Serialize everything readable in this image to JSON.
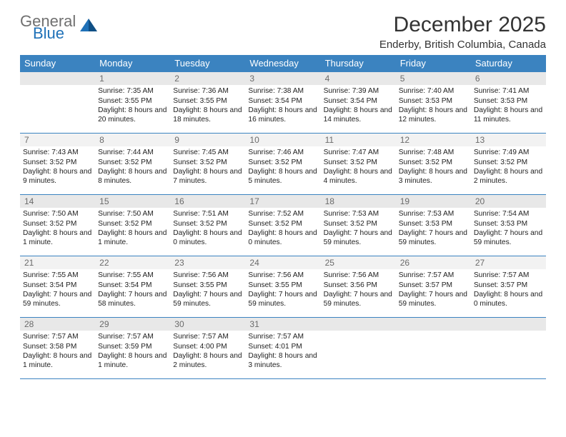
{
  "colors": {
    "accent": "#3b83c0",
    "background": "#ffffff",
    "row_divider": "#3b83c0",
    "daynum_bg": "#e8e8e8",
    "daynum_bg_zebra": "#f2f2f2",
    "daynum_color": "#6b6b6b",
    "text": "#222222",
    "header_text": "#ffffff",
    "logo_gray": "#707070",
    "logo_blue": "#1f71b8"
  },
  "logo": {
    "line1": "General",
    "line2": "Blue"
  },
  "title": "December 2025",
  "subtitle": "Enderby, British Columbia, Canada",
  "weekdays": [
    "Sunday",
    "Monday",
    "Tuesday",
    "Wednesday",
    "Thursday",
    "Friday",
    "Saturday"
  ],
  "weeks": [
    [
      null,
      {
        "n": "1",
        "sr": "Sunrise: 7:35 AM",
        "ss": "Sunset: 3:55 PM",
        "dl": "Daylight: 8 hours and 20 minutes."
      },
      {
        "n": "2",
        "sr": "Sunrise: 7:36 AM",
        "ss": "Sunset: 3:55 PM",
        "dl": "Daylight: 8 hours and 18 minutes."
      },
      {
        "n": "3",
        "sr": "Sunrise: 7:38 AM",
        "ss": "Sunset: 3:54 PM",
        "dl": "Daylight: 8 hours and 16 minutes."
      },
      {
        "n": "4",
        "sr": "Sunrise: 7:39 AM",
        "ss": "Sunset: 3:54 PM",
        "dl": "Daylight: 8 hours and 14 minutes."
      },
      {
        "n": "5",
        "sr": "Sunrise: 7:40 AM",
        "ss": "Sunset: 3:53 PM",
        "dl": "Daylight: 8 hours and 12 minutes."
      },
      {
        "n": "6",
        "sr": "Sunrise: 7:41 AM",
        "ss": "Sunset: 3:53 PM",
        "dl": "Daylight: 8 hours and 11 minutes."
      }
    ],
    [
      {
        "n": "7",
        "sr": "Sunrise: 7:43 AM",
        "ss": "Sunset: 3:52 PM",
        "dl": "Daylight: 8 hours and 9 minutes."
      },
      {
        "n": "8",
        "sr": "Sunrise: 7:44 AM",
        "ss": "Sunset: 3:52 PM",
        "dl": "Daylight: 8 hours and 8 minutes."
      },
      {
        "n": "9",
        "sr": "Sunrise: 7:45 AM",
        "ss": "Sunset: 3:52 PM",
        "dl": "Daylight: 8 hours and 7 minutes."
      },
      {
        "n": "10",
        "sr": "Sunrise: 7:46 AM",
        "ss": "Sunset: 3:52 PM",
        "dl": "Daylight: 8 hours and 5 minutes."
      },
      {
        "n": "11",
        "sr": "Sunrise: 7:47 AM",
        "ss": "Sunset: 3:52 PM",
        "dl": "Daylight: 8 hours and 4 minutes."
      },
      {
        "n": "12",
        "sr": "Sunrise: 7:48 AM",
        "ss": "Sunset: 3:52 PM",
        "dl": "Daylight: 8 hours and 3 minutes."
      },
      {
        "n": "13",
        "sr": "Sunrise: 7:49 AM",
        "ss": "Sunset: 3:52 PM",
        "dl": "Daylight: 8 hours and 2 minutes."
      }
    ],
    [
      {
        "n": "14",
        "sr": "Sunrise: 7:50 AM",
        "ss": "Sunset: 3:52 PM",
        "dl": "Daylight: 8 hours and 1 minute."
      },
      {
        "n": "15",
        "sr": "Sunrise: 7:50 AM",
        "ss": "Sunset: 3:52 PM",
        "dl": "Daylight: 8 hours and 1 minute."
      },
      {
        "n": "16",
        "sr": "Sunrise: 7:51 AM",
        "ss": "Sunset: 3:52 PM",
        "dl": "Daylight: 8 hours and 0 minutes."
      },
      {
        "n": "17",
        "sr": "Sunrise: 7:52 AM",
        "ss": "Sunset: 3:52 PM",
        "dl": "Daylight: 8 hours and 0 minutes."
      },
      {
        "n": "18",
        "sr": "Sunrise: 7:53 AM",
        "ss": "Sunset: 3:52 PM",
        "dl": "Daylight: 7 hours and 59 minutes."
      },
      {
        "n": "19",
        "sr": "Sunrise: 7:53 AM",
        "ss": "Sunset: 3:53 PM",
        "dl": "Daylight: 7 hours and 59 minutes."
      },
      {
        "n": "20",
        "sr": "Sunrise: 7:54 AM",
        "ss": "Sunset: 3:53 PM",
        "dl": "Daylight: 7 hours and 59 minutes."
      }
    ],
    [
      {
        "n": "21",
        "sr": "Sunrise: 7:55 AM",
        "ss": "Sunset: 3:54 PM",
        "dl": "Daylight: 7 hours and 59 minutes."
      },
      {
        "n": "22",
        "sr": "Sunrise: 7:55 AM",
        "ss": "Sunset: 3:54 PM",
        "dl": "Daylight: 7 hours and 58 minutes."
      },
      {
        "n": "23",
        "sr": "Sunrise: 7:56 AM",
        "ss": "Sunset: 3:55 PM",
        "dl": "Daylight: 7 hours and 59 minutes."
      },
      {
        "n": "24",
        "sr": "Sunrise: 7:56 AM",
        "ss": "Sunset: 3:55 PM",
        "dl": "Daylight: 7 hours and 59 minutes."
      },
      {
        "n": "25",
        "sr": "Sunrise: 7:56 AM",
        "ss": "Sunset: 3:56 PM",
        "dl": "Daylight: 7 hours and 59 minutes."
      },
      {
        "n": "26",
        "sr": "Sunrise: 7:57 AM",
        "ss": "Sunset: 3:57 PM",
        "dl": "Daylight: 7 hours and 59 minutes."
      },
      {
        "n": "27",
        "sr": "Sunrise: 7:57 AM",
        "ss": "Sunset: 3:57 PM",
        "dl": "Daylight: 8 hours and 0 minutes."
      }
    ],
    [
      {
        "n": "28",
        "sr": "Sunrise: 7:57 AM",
        "ss": "Sunset: 3:58 PM",
        "dl": "Daylight: 8 hours and 1 minute."
      },
      {
        "n": "29",
        "sr": "Sunrise: 7:57 AM",
        "ss": "Sunset: 3:59 PM",
        "dl": "Daylight: 8 hours and 1 minute."
      },
      {
        "n": "30",
        "sr": "Sunrise: 7:57 AM",
        "ss": "Sunset: 4:00 PM",
        "dl": "Daylight: 8 hours and 2 minutes."
      },
      {
        "n": "31",
        "sr": "Sunrise: 7:57 AM",
        "ss": "Sunset: 4:01 PM",
        "dl": "Daylight: 8 hours and 3 minutes."
      },
      null,
      null,
      null
    ]
  ]
}
